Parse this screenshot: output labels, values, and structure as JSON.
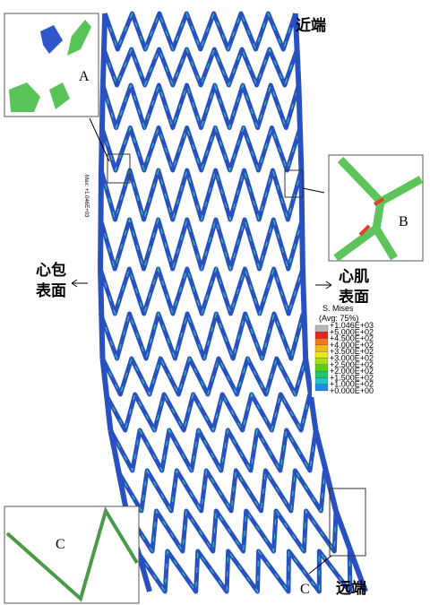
{
  "labels": {
    "proximal": "近端",
    "distal": "远端",
    "pericardial": [
      "心包",
      "表面"
    ],
    "myocardial": [
      "心肌",
      "表面"
    ],
    "callout_c": "C",
    "max_note": "Max: +1.046E+03"
  },
  "insets": [
    {
      "label": "A"
    },
    {
      "label": "B"
    },
    {
      "label": "C"
    }
  ],
  "legend": {
    "title": "S. Mises",
    "subtitle": "(Avg: 75%)",
    "entries": [
      "+1.046E+03",
      "+5.000E+02",
      "+4.500E+02",
      "+4.000E+02",
      "+3.500E+02",
      "+3.000E+02",
      "+2.500E+02",
      "+2.000E+02",
      "+1.500E+02",
      "+1.000E+02",
      "+0.000E+00"
    ]
  }
}
